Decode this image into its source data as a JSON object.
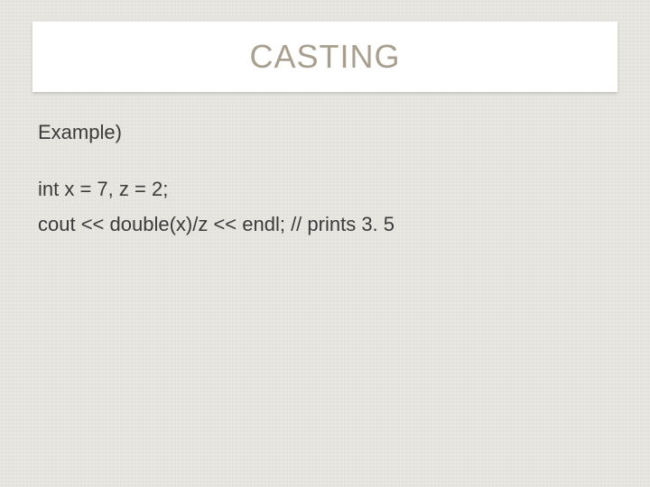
{
  "slide": {
    "title": "CASTING",
    "title_color": "#a89f8f",
    "title_fontsize": 36,
    "title_box_bg": "#ffffff",
    "body_color": "#3b3b3b",
    "body_fontsize": 22,
    "background_color": "#e8e6e1",
    "lines": {
      "example_label": "Example)",
      "code_line1": "int x = 7, z = 2;",
      "code_line2": "cout << double(x)/z << endl;   // prints 3. 5"
    }
  }
}
